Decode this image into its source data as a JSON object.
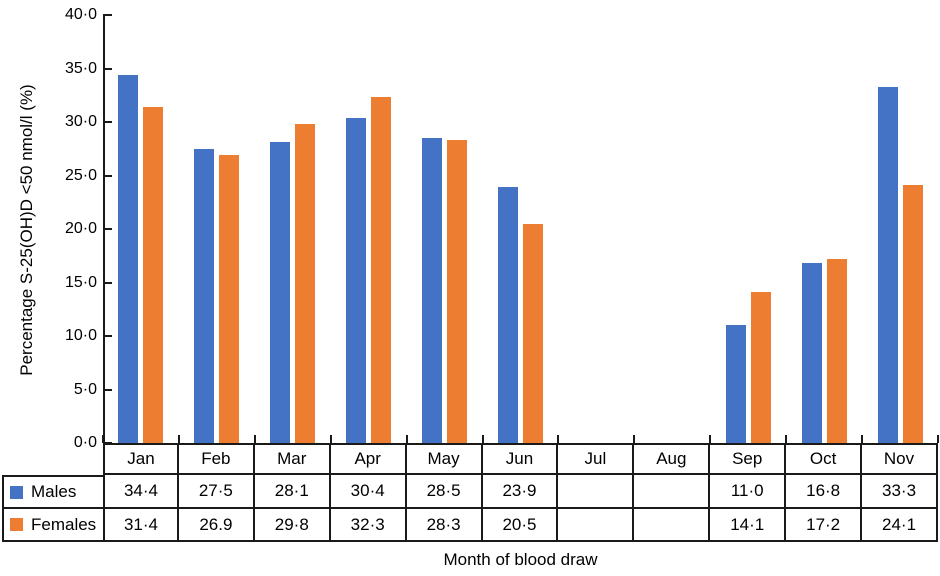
{
  "figure": {
    "y_axis_title": "Percentage S-25(OH)D <50 nmol/l (%)",
    "x_axis_title": "Month of blood draw"
  },
  "colors": {
    "males": "#4472C4",
    "females": "#ED7D31",
    "line": "#1a1a1a"
  },
  "y_axis": {
    "tick_values": [
      40,
      35,
      30,
      25,
      20,
      15,
      10,
      5,
      0
    ],
    "tick_labels": [
      "40·0",
      "35·0",
      "30·0",
      "25·0",
      "20·0",
      "15·0",
      "10·0",
      "5·0",
      "0·0"
    ]
  },
  "table": {
    "months": [
      "Jan",
      "Feb",
      "Mar",
      "Apr",
      "May",
      "Jun",
      "Jul",
      "Aug",
      "Sep",
      "Oct",
      "Nov"
    ],
    "males_label": "Males",
    "females_label": "Females",
    "males_display": [
      "34·4",
      "27·5",
      "28·1",
      "30·4",
      "28·5",
      "23·9",
      "",
      "",
      "11·0",
      "16·8",
      "33·3"
    ],
    "females_display": [
      "31·4",
      "26.9",
      "29·8",
      "32·3",
      "28·3",
      "20·5",
      "",
      "",
      "14·1",
      "17·2",
      "24·1"
    ]
  },
  "chart_data": {
    "type": "bar",
    "categories": [
      "Jan",
      "Feb",
      "Mar",
      "Apr",
      "May",
      "Jun",
      "Jul",
      "Aug",
      "Sep",
      "Oct",
      "Nov"
    ],
    "series": [
      {
        "name": "Males",
        "color": "#4472C4",
        "values": [
          34.4,
          27.5,
          28.1,
          30.4,
          28.5,
          23.9,
          null,
          null,
          11.0,
          16.8,
          33.3
        ]
      },
      {
        "name": "Females",
        "color": "#ED7D31",
        "values": [
          31.4,
          26.9,
          29.8,
          32.3,
          28.3,
          20.5,
          null,
          null,
          14.1,
          17.2,
          24.1
        ]
      }
    ],
    "title": "",
    "xlabel": "Month of blood draw",
    "ylabel": "Percentage S-25(OH)D <50 nmol/l (%)",
    "ylim": [
      0,
      40
    ],
    "ytick_step": 5,
    "grid": false,
    "legend_position": "table-left-column"
  }
}
